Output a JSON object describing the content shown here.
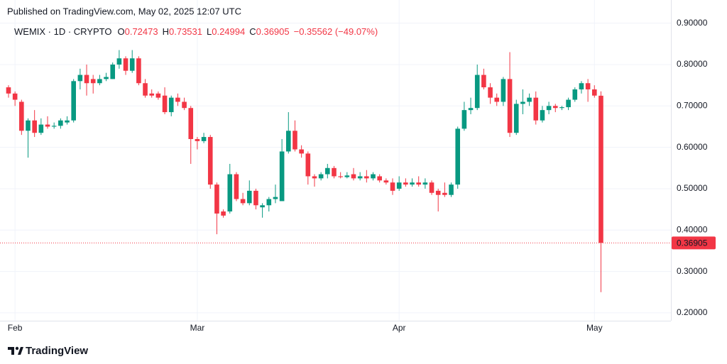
{
  "header": {
    "published": "Published on TradingView.com, May 02, 2025 12:07 UTC"
  },
  "footer": {
    "brand": "TradingView"
  },
  "chart_data": {
    "type": "candlestick",
    "symbol": "WEMIX · 1D · CRYPTO",
    "ohlc_legend": [
      {
        "label": "O",
        "value": "0.72473"
      },
      {
        "label": "H",
        "value": "0.73531"
      },
      {
        "label": "L",
        "value": "0.24994"
      },
      {
        "label": "C",
        "value": "0.36905"
      }
    ],
    "change": "−0.35562 (−49.07%)",
    "last_price_label": "0.36905",
    "up_color": "#089981",
    "down_color": "#f23645",
    "grid": true,
    "categories": [
      null,
      "Feb",
      null,
      null,
      null,
      null,
      null,
      null,
      null,
      null,
      null,
      null,
      null,
      null,
      null,
      null,
      null,
      null,
      null,
      null,
      null,
      null,
      null,
      null,
      null,
      null,
      null,
      null,
      null,
      "Mar",
      null,
      null,
      null,
      null,
      null,
      null,
      null,
      null,
      null,
      null,
      null,
      null,
      null,
      null,
      null,
      null,
      null,
      null,
      null,
      null,
      null,
      null,
      null,
      null,
      null,
      null,
      null,
      null,
      null,
      null,
      "Apr",
      null,
      null,
      null,
      null,
      null,
      null,
      null,
      null,
      null,
      null,
      null,
      null,
      null,
      null,
      null,
      null,
      null,
      null,
      null,
      null,
      null,
      null,
      null,
      null,
      null,
      null,
      null,
      null,
      null,
      "May",
      null
    ],
    "open": [
      0.745,
      0.73,
      0.71,
      0.64,
      0.665,
      0.635,
      0.655,
      0.65,
      0.652,
      0.66,
      0.665,
      0.76,
      0.775,
      0.765,
      0.755,
      0.765,
      0.765,
      0.8,
      0.815,
      0.785,
      0.815,
      0.755,
      0.73,
      0.73,
      0.725,
      0.685,
      0.72,
      0.71,
      0.695,
      0.62,
      0.615,
      0.625,
      0.51,
      0.445,
      0.445,
      0.535,
      0.475,
      0.465,
      0.495,
      0.455,
      0.46,
      0.475,
      0.47,
      0.59,
      0.64,
      0.595,
      0.585,
      0.53,
      0.525,
      0.535,
      0.55,
      0.53,
      0.528,
      0.535,
      0.525,
      0.53,
      0.525,
      0.53,
      0.52,
      0.515,
      0.5,
      0.515,
      0.51,
      0.515,
      0.51,
      0.515,
      0.495,
      0.49,
      0.485,
      0.51,
      0.645,
      0.69,
      0.695,
      0.775,
      0.745,
      0.72,
      0.71,
      0.765,
      0.635,
      0.705,
      0.71,
      0.72,
      0.665,
      0.69,
      0.7,
      0.695,
      0.697,
      0.715,
      0.74,
      0.755,
      0.74,
      0.72473
    ],
    "high": [
      0.75,
      0.735,
      0.715,
      0.67,
      0.69,
      0.67,
      0.675,
      0.66,
      0.67,
      0.675,
      0.765,
      0.79,
      0.8,
      0.775,
      0.775,
      0.78,
      0.805,
      0.835,
      0.82,
      0.835,
      0.82,
      0.765,
      0.74,
      0.735,
      0.745,
      0.725,
      0.73,
      0.72,
      0.7,
      0.625,
      0.635,
      0.63,
      0.515,
      0.45,
      0.56,
      0.54,
      0.49,
      0.52,
      0.5,
      0.465,
      0.48,
      0.51,
      0.62,
      0.685,
      0.665,
      0.605,
      0.59,
      0.535,
      0.54,
      0.56,
      0.555,
      0.54,
      0.54,
      0.55,
      0.54,
      0.545,
      0.54,
      0.535,
      0.525,
      0.525,
      0.53,
      0.525,
      0.525,
      0.53,
      0.525,
      0.52,
      0.5,
      0.515,
      0.515,
      0.65,
      0.71,
      0.72,
      0.8,
      0.79,
      0.755,
      0.73,
      0.77,
      0.83,
      0.715,
      0.74,
      0.73,
      0.735,
      0.7,
      0.71,
      0.705,
      0.7,
      0.72,
      0.745,
      0.76,
      0.765,
      0.75,
      0.73531
    ],
    "low": [
      0.72,
      0.7,
      0.63,
      0.575,
      0.625,
      0.63,
      0.645,
      0.645,
      0.645,
      0.655,
      0.66,
      0.74,
      0.725,
      0.73,
      0.75,
      0.76,
      0.765,
      0.79,
      0.775,
      0.78,
      0.75,
      0.72,
      0.72,
      0.715,
      0.68,
      0.675,
      0.7,
      0.69,
      0.56,
      0.595,
      0.61,
      0.5,
      0.39,
      0.43,
      0.44,
      0.47,
      0.46,
      0.46,
      0.45,
      0.43,
      0.445,
      0.465,
      0.47,
      0.585,
      0.59,
      0.575,
      0.51,
      0.505,
      0.52,
      0.525,
      0.525,
      0.525,
      0.525,
      0.52,
      0.52,
      0.515,
      0.52,
      0.515,
      0.51,
      0.485,
      0.495,
      0.505,
      0.505,
      0.505,
      0.5,
      0.485,
      0.445,
      0.48,
      0.48,
      0.5,
      0.64,
      0.68,
      0.69,
      0.74,
      0.705,
      0.7,
      0.7,
      0.625,
      0.63,
      0.68,
      0.7,
      0.655,
      0.66,
      0.68,
      0.685,
      0.69,
      0.69,
      0.71,
      0.73,
      0.71,
      0.72,
      0.24994
    ],
    "close": [
      0.73,
      0.715,
      0.64,
      0.665,
      0.635,
      0.655,
      0.65,
      0.652,
      0.665,
      0.665,
      0.76,
      0.775,
      0.755,
      0.755,
      0.765,
      0.77,
      0.8,
      0.815,
      0.785,
      0.815,
      0.755,
      0.725,
      0.725,
      0.72,
      0.685,
      0.72,
      0.71,
      0.695,
      0.62,
      0.615,
      0.625,
      0.51,
      0.44,
      0.435,
      0.535,
      0.475,
      0.465,
      0.495,
      0.46,
      0.46,
      0.475,
      0.48,
      0.59,
      0.64,
      0.595,
      0.585,
      0.53,
      0.525,
      0.535,
      0.55,
      0.53,
      0.528,
      0.532,
      0.525,
      0.53,
      0.525,
      0.535,
      0.52,
      0.515,
      0.495,
      0.515,
      0.51,
      0.515,
      0.51,
      0.515,
      0.49,
      0.485,
      0.485,
      0.51,
      0.645,
      0.69,
      0.695,
      0.775,
      0.745,
      0.72,
      0.71,
      0.765,
      0.635,
      0.705,
      0.71,
      0.72,
      0.665,
      0.69,
      0.7,
      0.695,
      0.697,
      0.715,
      0.74,
      0.755,
      0.74,
      0.725,
      0.36905
    ],
    "ylim": [
      0.181,
      0.956
    ],
    "yticks": [
      {
        "value": 0.2,
        "label": "0.20000"
      },
      {
        "value": 0.3,
        "label": "0.30000"
      },
      {
        "value": 0.4,
        "label": "0.40000"
      },
      {
        "value": 0.5,
        "label": "0.50000"
      },
      {
        "value": 0.6,
        "label": "0.60000"
      },
      {
        "value": 0.7,
        "label": "0.70000"
      },
      {
        "value": 0.8,
        "label": "0.80000"
      },
      {
        "value": 0.9,
        "label": "0.90000"
      }
    ]
  }
}
